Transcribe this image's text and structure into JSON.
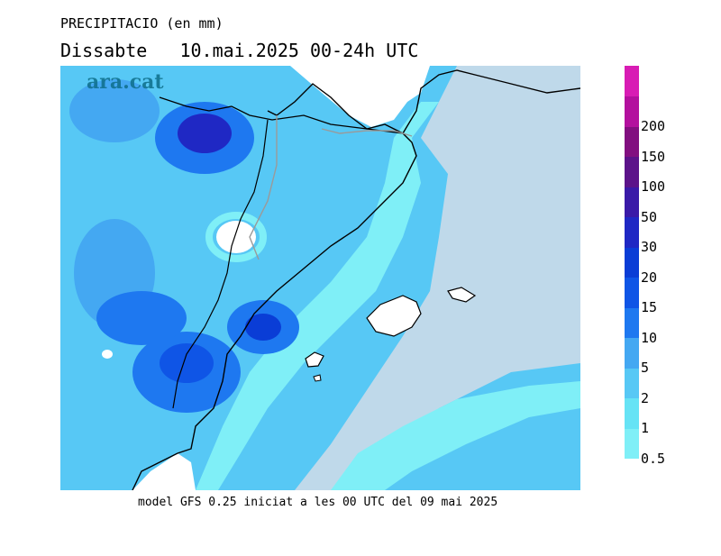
{
  "header": {
    "title": "PRECIPITACIO (en mm)",
    "subtitle": "Dissabte   10.mai.2025 00-24h UTC"
  },
  "watermark": "ara.cat",
  "footer": "model GFS 0.25 iniciat a les 00 UTC del 09 mai 2025",
  "legend": {
    "levels": [
      {
        "label": "0.5",
        "color": "#7feff7"
      },
      {
        "label": "1",
        "color": "#66e3f5"
      },
      {
        "label": "2",
        "color": "#57c8f5"
      },
      {
        "label": "5",
        "color": "#44a8f2"
      },
      {
        "label": "10",
        "color": "#1e78f0"
      },
      {
        "label": "15",
        "color": "#0f55e6"
      },
      {
        "label": "20",
        "color": "#0a3dd6"
      },
      {
        "label": "30",
        "color": "#1f28c4"
      },
      {
        "label": "50",
        "color": "#3a1aa8"
      },
      {
        "label": "100",
        "color": "#5c138a"
      },
      {
        "label": "150",
        "color": "#820f80"
      },
      {
        "label": "200",
        "color": "#b3109e"
      },
      {
        "label": "",
        "color": "#d81cb4"
      }
    ]
  },
  "map": {
    "sea_color": "#bfd9ea",
    "dry_color": "#ffffff"
  }
}
